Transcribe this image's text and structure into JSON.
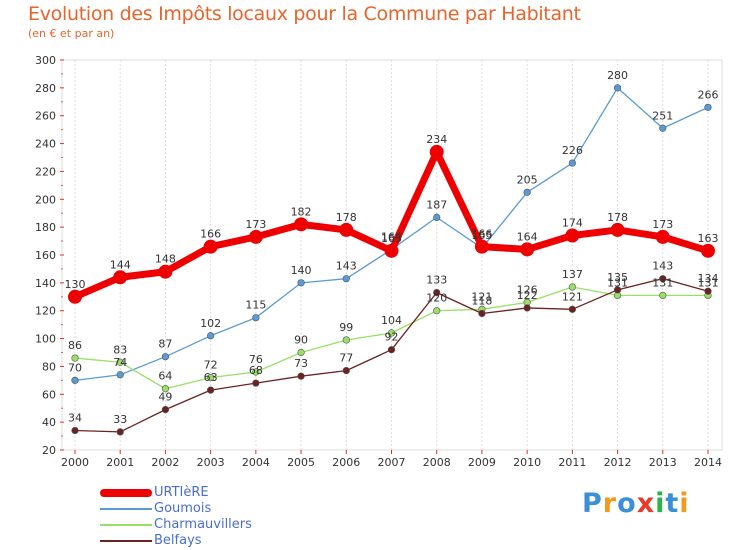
{
  "header": {
    "title": "Evolution des Impôts locaux pour la Commune par Habitant",
    "subtitle": "(en € et par an)"
  },
  "chart_data": {
    "type": "line",
    "title": "Evolution des Impôts locaux pour la Commune par Habitant",
    "subtitle": "(en € et par an)",
    "xlabel": "",
    "ylabel": "",
    "x": [
      2000,
      2001,
      2002,
      2003,
      2004,
      2005,
      2006,
      2007,
      2008,
      2009,
      2010,
      2011,
      2012,
      2013,
      2014
    ],
    "ylim": [
      20,
      300
    ],
    "yticks": [
      20,
      40,
      60,
      80,
      100,
      120,
      140,
      160,
      180,
      200,
      220,
      240,
      260,
      280,
      300
    ],
    "grid": "vertical",
    "legend_position": "bottom-left",
    "series": [
      {
        "name": "URTIèRE",
        "color": "#ee0000",
        "values": [
          130,
          144,
          148,
          166,
          173,
          182,
          178,
          163,
          234,
          166,
          164,
          174,
          178,
          173,
          163
        ]
      },
      {
        "name": "Goumois",
        "color": "#5b9bd5",
        "values": [
          70,
          74,
          87,
          102,
          115,
          140,
          143,
          164,
          187,
          165,
          205,
          226,
          280,
          251,
          266
        ]
      },
      {
        "name": "Charmauvillers",
        "color": "#99e066",
        "values": [
          86,
          83,
          64,
          72,
          76,
          90,
          99,
          104,
          120,
          121,
          126,
          137,
          131,
          131,
          131
        ]
      },
      {
        "name": "Belfays",
        "color": "#6b2222",
        "values": [
          34,
          33,
          49,
          63,
          68,
          73,
          77,
          92,
          133,
          118,
          122,
          121,
          135,
          143,
          134
        ]
      }
    ]
  },
  "legend": {
    "items": [
      {
        "label": "URTIèRE",
        "color": "#ee0000"
      },
      {
        "label": "Goumois",
        "color": "#5b9bd5"
      },
      {
        "label": "Charmauvillers",
        "color": "#99e066"
      },
      {
        "label": "Belfays",
        "color": "#6b2222"
      }
    ]
  },
  "logo": {
    "letters": [
      "P",
      "r",
      "o",
      "x",
      "i",
      "t",
      "i"
    ],
    "colors": [
      "#3a8fd8",
      "#f29a1d",
      "#3a8fd8",
      "#e83a2a",
      "#2bb34a",
      "#3a8fd8",
      "#f29a1d"
    ]
  }
}
